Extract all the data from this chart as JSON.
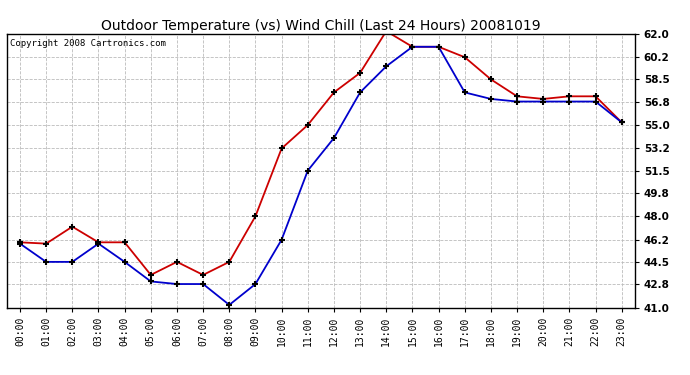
{
  "title": "Outdoor Temperature (vs) Wind Chill (Last 24 Hours) 20081019",
  "copyright": "Copyright 2008 Cartronics.com",
  "hours": [
    "00:00",
    "01:00",
    "02:00",
    "03:00",
    "04:00",
    "05:00",
    "06:00",
    "07:00",
    "08:00",
    "09:00",
    "10:00",
    "11:00",
    "12:00",
    "13:00",
    "14:00",
    "15:00",
    "16:00",
    "17:00",
    "18:00",
    "19:00",
    "20:00",
    "21:00",
    "22:00",
    "23:00"
  ],
  "temp": [
    46.0,
    45.9,
    47.2,
    46.0,
    46.0,
    43.5,
    44.5,
    43.5,
    44.5,
    48.0,
    53.2,
    55.0,
    57.5,
    59.0,
    62.2,
    61.0,
    61.0,
    60.2,
    58.5,
    57.2,
    57.0,
    57.2,
    57.2,
    55.2
  ],
  "wind_chill": [
    45.9,
    44.5,
    44.5,
    45.9,
    44.5,
    43.0,
    42.8,
    42.8,
    41.2,
    42.8,
    46.2,
    51.5,
    54.0,
    57.5,
    59.5,
    61.0,
    61.0,
    57.5,
    57.0,
    56.8,
    56.8,
    56.8,
    56.8,
    55.2
  ],
  "temp_color": "#cc0000",
  "wind_chill_color": "#0000cc",
  "yticks": [
    41.0,
    42.8,
    44.5,
    46.2,
    48.0,
    49.8,
    51.5,
    53.2,
    55.0,
    56.8,
    58.5,
    60.2,
    62.0
  ],
  "ylim": [
    41.0,
    62.0
  ],
  "bg_color": "#ffffff",
  "plot_bg_color": "#ffffff",
  "grid_color": "#bbbbbb",
  "title_fontsize": 10,
  "copyright_fontsize": 6.5,
  "tick_fontsize": 7,
  "ytick_fontsize": 7.5
}
